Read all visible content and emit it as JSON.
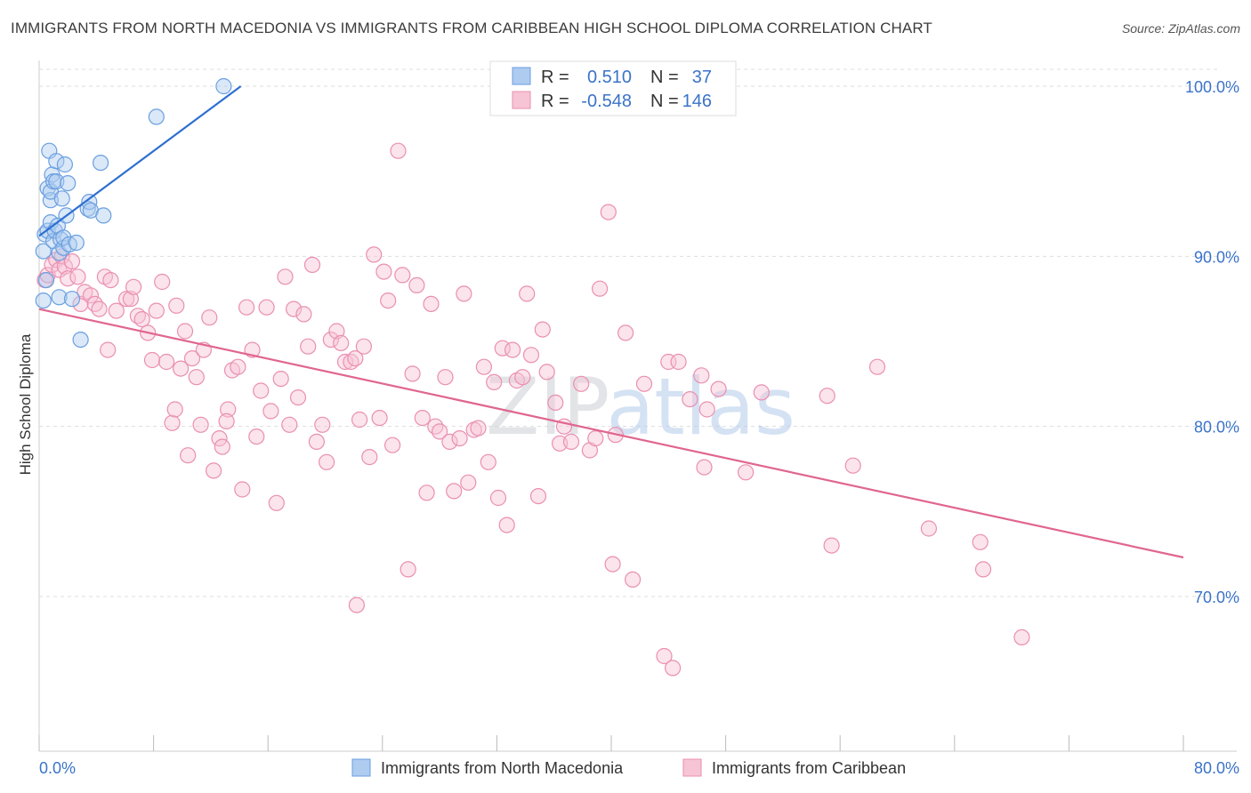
{
  "title": "IMMIGRANTS FROM NORTH MACEDONIA VS IMMIGRANTS FROM CARIBBEAN HIGH SCHOOL DIPLOMA CORRELATION CHART",
  "source": "Source: ZipAtlas.com",
  "watermark": "ZIPatlas",
  "colors": {
    "blue_fill": "#aecbf0",
    "blue_stroke": "#6a9fe0",
    "blue_line": "#2e6fd1",
    "pink_fill": "#f7c4d5",
    "pink_stroke": "#ea8fb0",
    "pink_line": "#e0668f",
    "value_text": "#3a73c9",
    "grid": "#dddddd"
  },
  "stats_legend": {
    "row1": {
      "r_label": "R =",
      "r_value": "0.510",
      "n_label": "N =",
      "n_value": "37"
    },
    "row2": {
      "r_label": "R =",
      "r_value": "-0.548",
      "n_label": "N =",
      "n_value": "146"
    }
  },
  "chart_data": {
    "type": "scatter",
    "xlabel": "",
    "ylabel": "High School Diploma",
    "xlim": [
      0,
      80
    ],
    "ylim": [
      60,
      100.5
    ],
    "x_tick_labels": [
      {
        "value": 0,
        "label": "0.0%"
      },
      {
        "value": 80,
        "label": "80.0%"
      }
    ],
    "y_tick_labels": [
      {
        "value": 100,
        "label": "100.0%"
      },
      {
        "value": 90,
        "label": "90.0%"
      },
      {
        "value": 80,
        "label": "80.0%"
      },
      {
        "value": 70,
        "label": "70.0%"
      }
    ],
    "x_minor_ticks": [
      0,
      8,
      16,
      24,
      32,
      40,
      48,
      56,
      64,
      72,
      80
    ],
    "grid": true,
    "legend_position": "bottom-center",
    "series": [
      {
        "name": "Immigrants from North Macedonia",
        "color": "blue",
        "trend": {
          "x": [
            0.0,
            14.1
          ],
          "y": [
            91.2,
            100.0
          ]
        },
        "points": [
          [
            0.3,
            87.4
          ],
          [
            0.3,
            90.3
          ],
          [
            0.4,
            91.3
          ],
          [
            0.5,
            88.6
          ],
          [
            0.6,
            91.5
          ],
          [
            0.6,
            94.0
          ],
          [
            0.7,
            96.2
          ],
          [
            0.8,
            92.0
          ],
          [
            0.8,
            93.3
          ],
          [
            0.8,
            93.8
          ],
          [
            0.9,
            94.8
          ],
          [
            1.0,
            90.9
          ],
          [
            1.0,
            94.4
          ],
          [
            1.1,
            91.5
          ],
          [
            1.2,
            95.6
          ],
          [
            1.2,
            94.4
          ],
          [
            1.3,
            91.8
          ],
          [
            1.4,
            90.2
          ],
          [
            1.4,
            87.6
          ],
          [
            1.5,
            91.0
          ],
          [
            1.6,
            93.4
          ],
          [
            1.7,
            90.5
          ],
          [
            1.7,
            91.1
          ],
          [
            1.8,
            95.4
          ],
          [
            1.9,
            92.4
          ],
          [
            2.0,
            94.3
          ],
          [
            2.1,
            90.7
          ],
          [
            2.3,
            87.5
          ],
          [
            2.6,
            90.8
          ],
          [
            2.9,
            85.1
          ],
          [
            3.4,
            92.8
          ],
          [
            3.5,
            93.2
          ],
          [
            3.6,
            92.7
          ],
          [
            4.3,
            95.5
          ],
          [
            4.5,
            92.4
          ],
          [
            8.2,
            98.2
          ],
          [
            12.9,
            100.0
          ]
        ]
      },
      {
        "name": "Immigrants from Caribbean",
        "color": "pink",
        "trend": {
          "x": [
            0.0,
            80.0
          ],
          "y": [
            86.9,
            72.3
          ]
        },
        "points": [
          [
            0.4,
            88.6
          ],
          [
            0.6,
            88.9
          ],
          [
            0.9,
            89.5
          ],
          [
            1.2,
            89.8
          ],
          [
            1.4,
            89.2
          ],
          [
            1.6,
            90.0
          ],
          [
            1.8,
            89.4
          ],
          [
            2.0,
            88.7
          ],
          [
            2.3,
            89.7
          ],
          [
            2.7,
            88.8
          ],
          [
            2.9,
            87.2
          ],
          [
            3.2,
            87.9
          ],
          [
            3.6,
            87.7
          ],
          [
            3.9,
            87.2
          ],
          [
            4.2,
            86.9
          ],
          [
            4.6,
            88.8
          ],
          [
            4.8,
            84.5
          ],
          [
            5.0,
            88.6
          ],
          [
            5.4,
            86.8
          ],
          [
            6.1,
            87.5
          ],
          [
            6.4,
            87.5
          ],
          [
            6.6,
            88.2
          ],
          [
            6.9,
            86.5
          ],
          [
            7.2,
            86.3
          ],
          [
            7.6,
            85.5
          ],
          [
            7.9,
            83.9
          ],
          [
            8.2,
            86.8
          ],
          [
            8.6,
            88.5
          ],
          [
            8.9,
            83.8
          ],
          [
            9.3,
            80.2
          ],
          [
            9.6,
            87.1
          ],
          [
            9.9,
            83.4
          ],
          [
            10.2,
            85.6
          ],
          [
            10.4,
            78.3
          ],
          [
            10.7,
            84.0
          ],
          [
            11.0,
            82.9
          ],
          [
            11.3,
            80.1
          ],
          [
            11.5,
            84.5
          ],
          [
            11.9,
            86.4
          ],
          [
            12.2,
            77.4
          ],
          [
            12.6,
            79.3
          ],
          [
            12.8,
            78.8
          ],
          [
            13.2,
            81.0
          ],
          [
            13.5,
            83.3
          ],
          [
            13.9,
            83.5
          ],
          [
            14.2,
            76.3
          ],
          [
            14.5,
            87.0
          ],
          [
            14.9,
            84.5
          ],
          [
            15.2,
            79.4
          ],
          [
            15.5,
            82.1
          ],
          [
            15.9,
            87.0
          ],
          [
            16.2,
            80.9
          ],
          [
            16.6,
            75.5
          ],
          [
            16.9,
            82.8
          ],
          [
            17.2,
            88.8
          ],
          [
            17.5,
            80.1
          ],
          [
            17.8,
            86.9
          ],
          [
            18.1,
            81.7
          ],
          [
            18.5,
            86.6
          ],
          [
            18.8,
            84.7
          ],
          [
            19.1,
            89.5
          ],
          [
            19.4,
            79.1
          ],
          [
            19.8,
            80.1
          ],
          [
            20.1,
            77.9
          ],
          [
            20.4,
            85.1
          ],
          [
            20.8,
            85.6
          ],
          [
            21.1,
            84.9
          ],
          [
            21.4,
            83.8
          ],
          [
            21.8,
            83.8
          ],
          [
            22.1,
            84.0
          ],
          [
            22.4,
            80.4
          ],
          [
            22.7,
            84.7
          ],
          [
            23.1,
            78.2
          ],
          [
            23.4,
            90.1
          ],
          [
            23.8,
            80.5
          ],
          [
            24.1,
            89.1
          ],
          [
            24.4,
            87.4
          ],
          [
            24.7,
            78.9
          ],
          [
            25.1,
            96.2
          ],
          [
            25.4,
            88.9
          ],
          [
            25.8,
            71.6
          ],
          [
            26.1,
            83.1
          ],
          [
            26.4,
            88.3
          ],
          [
            26.8,
            80.5
          ],
          [
            27.1,
            76.1
          ],
          [
            27.4,
            87.2
          ],
          [
            27.7,
            80.0
          ],
          [
            28.0,
            79.7
          ],
          [
            28.4,
            82.9
          ],
          [
            28.7,
            79.1
          ],
          [
            29.0,
            76.2
          ],
          [
            29.4,
            79.3
          ],
          [
            29.7,
            87.8
          ],
          [
            30.0,
            76.7
          ],
          [
            30.4,
            79.8
          ],
          [
            30.7,
            79.9
          ],
          [
            31.1,
            83.5
          ],
          [
            31.4,
            77.9
          ],
          [
            31.8,
            82.6
          ],
          [
            32.1,
            75.8
          ],
          [
            32.4,
            84.6
          ],
          [
            32.7,
            74.2
          ],
          [
            33.1,
            84.5
          ],
          [
            33.4,
            82.7
          ],
          [
            33.8,
            82.9
          ],
          [
            34.1,
            87.8
          ],
          [
            34.4,
            84.2
          ],
          [
            34.9,
            75.9
          ],
          [
            35.2,
            85.7
          ],
          [
            35.5,
            83.2
          ],
          [
            36.1,
            81.4
          ],
          [
            36.4,
            79.0
          ],
          [
            36.7,
            80.0
          ],
          [
            37.2,
            79.1
          ],
          [
            37.9,
            82.5
          ],
          [
            38.5,
            78.6
          ],
          [
            38.9,
            79.3
          ],
          [
            39.2,
            88.1
          ],
          [
            39.8,
            92.6
          ],
          [
            40.1,
            71.9
          ],
          [
            40.3,
            79.5
          ],
          [
            41.0,
            85.5
          ],
          [
            41.5,
            71.0
          ],
          [
            42.3,
            82.5
          ],
          [
            43.7,
            66.5
          ],
          [
            44.0,
            83.8
          ],
          [
            44.3,
            65.8
          ],
          [
            44.7,
            83.8
          ],
          [
            45.5,
            81.6
          ],
          [
            46.3,
            83.0
          ],
          [
            46.5,
            77.6
          ],
          [
            46.7,
            81.0
          ],
          [
            47.5,
            82.2
          ],
          [
            49.4,
            77.3
          ],
          [
            50.5,
            82.0
          ],
          [
            55.1,
            81.8
          ],
          [
            55.4,
            73.0
          ],
          [
            56.9,
            77.7
          ],
          [
            58.6,
            83.5
          ],
          [
            62.2,
            74.0
          ],
          [
            65.8,
            73.2
          ],
          [
            66.0,
            71.6
          ],
          [
            68.7,
            67.6
          ],
          [
            22.2,
            69.5
          ],
          [
            13.1,
            80.3
          ],
          [
            9.5,
            81.0
          ]
        ]
      }
    ]
  }
}
